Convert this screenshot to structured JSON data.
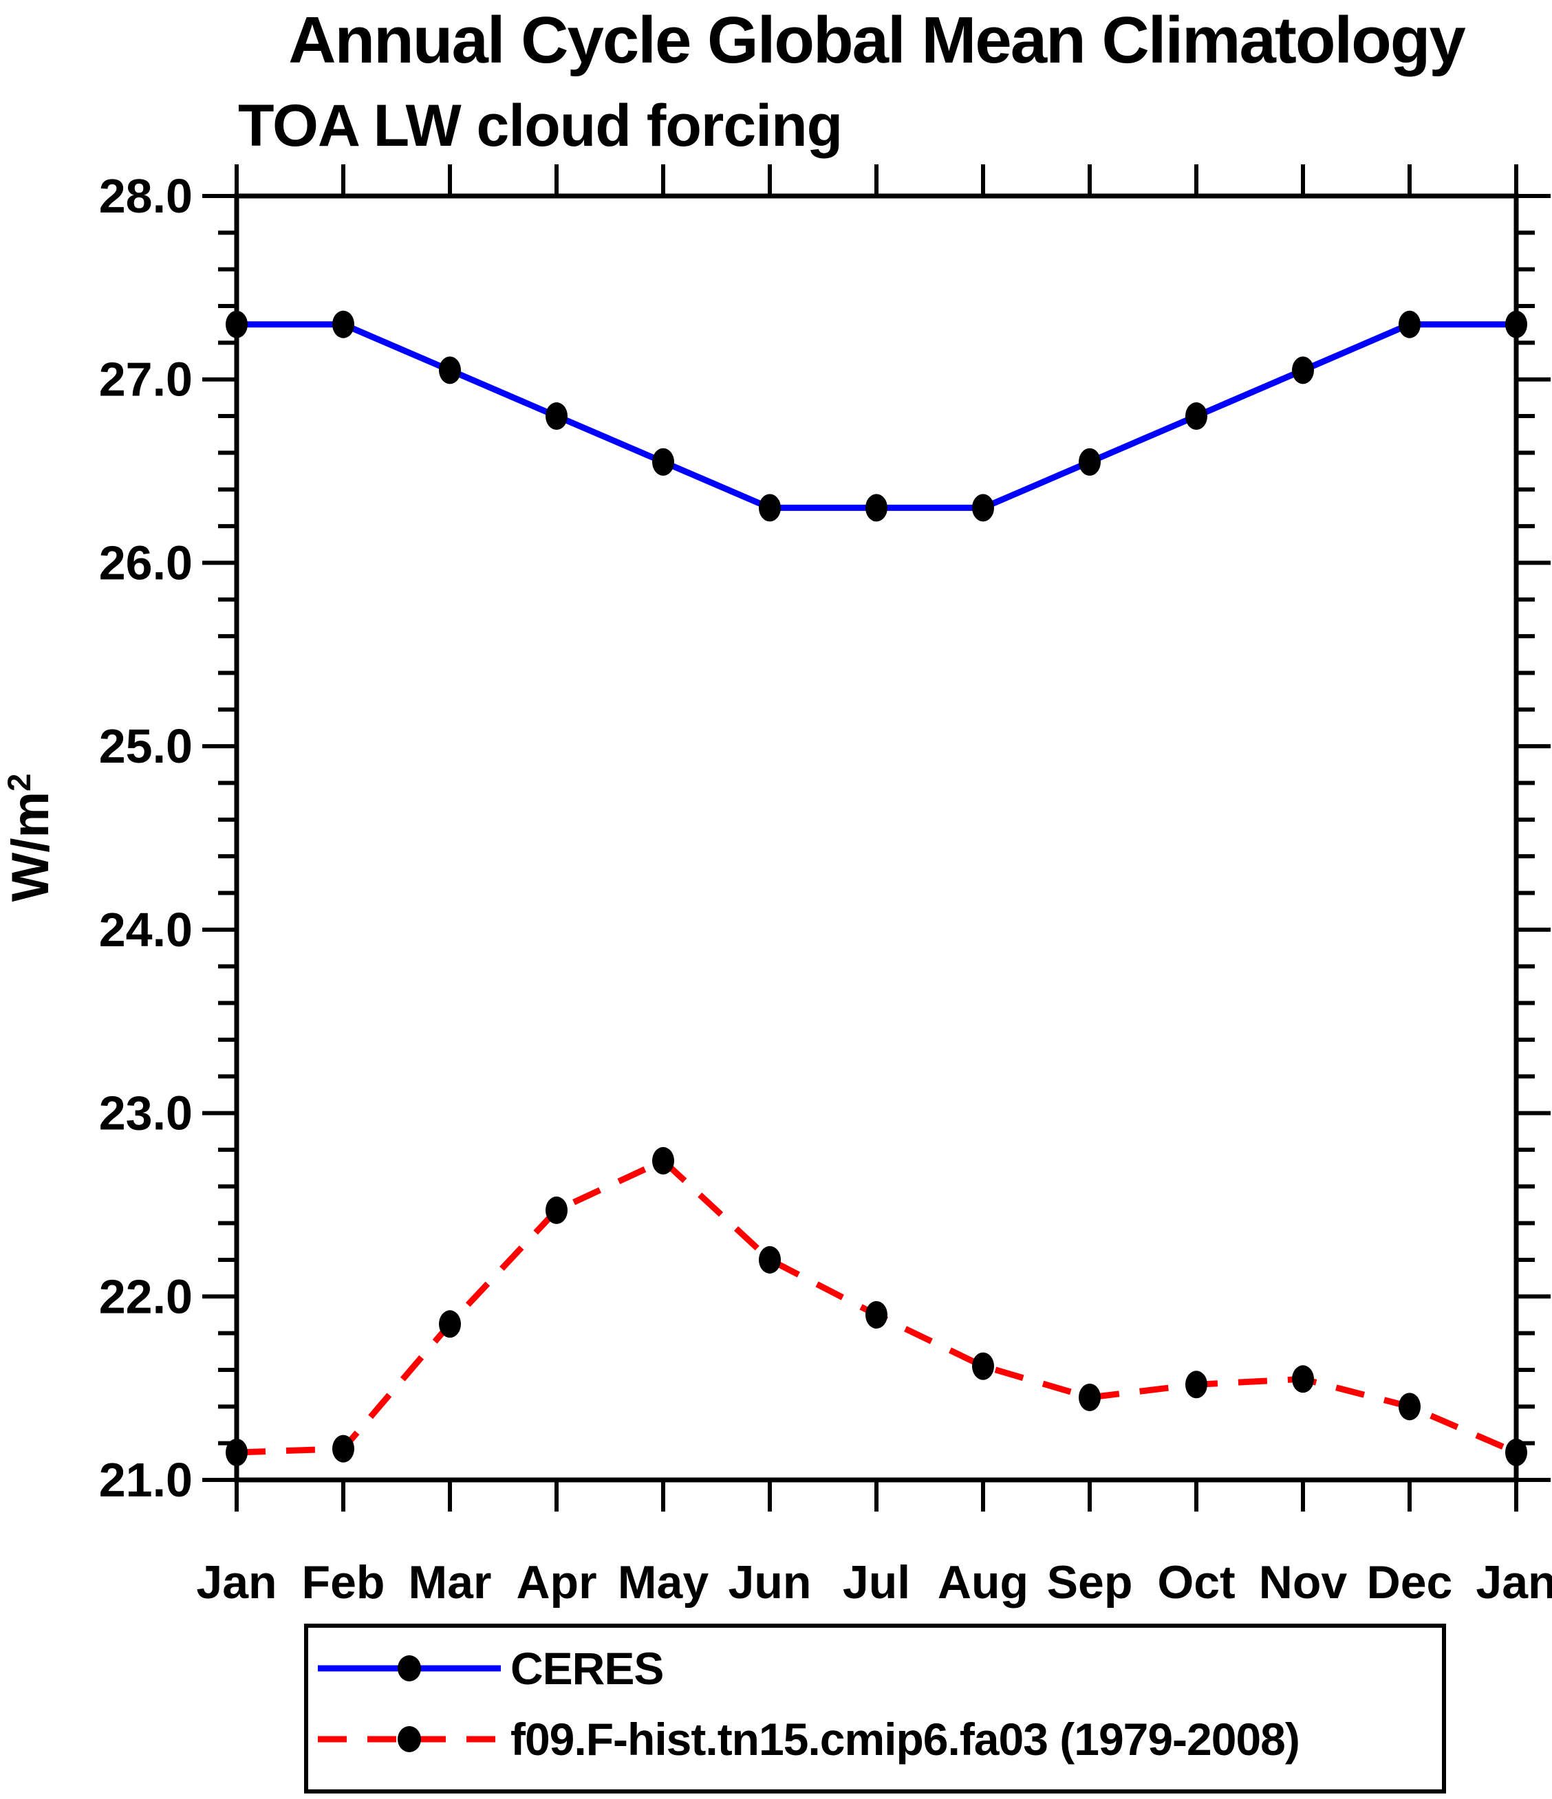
{
  "chart_data": {
    "type": "line",
    "title": "Annual Cycle Global Mean Climatology",
    "subtitle": "TOA LW cloud forcing",
    "ylabel": "W/m",
    "ylabel_superscript": "2",
    "categories": [
      "Jan",
      "Feb",
      "Mar",
      "Apr",
      "May",
      "Jun",
      "Jul",
      "Aug",
      "Sep",
      "Oct",
      "Nov",
      "Dec",
      "Jan"
    ],
    "ylim": [
      21.0,
      28.0
    ],
    "ytick_major_step": 1.0,
    "ytick_minor_step": 0.2,
    "grid": false,
    "legend_position": "bottom",
    "frame_color": "#000000",
    "marker_color": "#000000",
    "series": [
      {
        "name": "CERES",
        "color": "#0000ff",
        "style": "solid",
        "marker": "filled-circle",
        "values": [
          27.3,
          27.3,
          27.05,
          26.8,
          26.55,
          26.3,
          26.3,
          26.3,
          26.55,
          26.8,
          27.05,
          27.3,
          27.3
        ]
      },
      {
        "name": "f09.F-hist.tn15.cmip6.fa03 (1979-2008)",
        "color": "#ff0000",
        "style": "dashed",
        "marker": "filled-circle",
        "values": [
          21.15,
          21.17,
          21.85,
          22.47,
          22.74,
          22.2,
          21.9,
          21.62,
          21.45,
          21.52,
          21.55,
          21.4,
          21.15
        ]
      }
    ]
  }
}
